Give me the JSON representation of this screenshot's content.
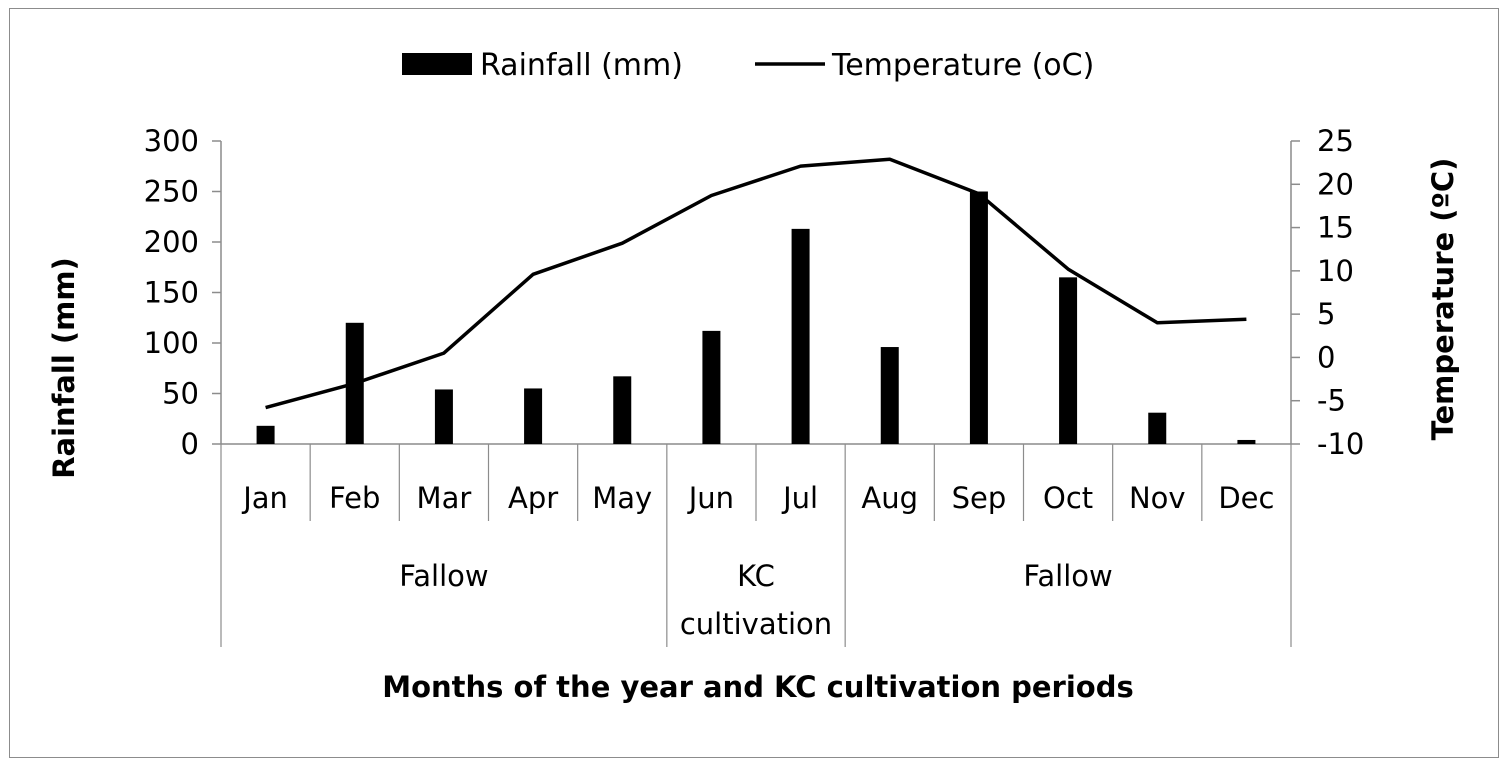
{
  "chart_data": {
    "type": "bar+line",
    "categories": [
      "Jan",
      "Feb",
      "Mar",
      "Apr",
      "May",
      "Jun",
      "Jul",
      "Aug",
      "Sep",
      "Oct",
      "Nov",
      "Dec"
    ],
    "groups": [
      {
        "label": "Fallow",
        "start": 0,
        "end": 4
      },
      {
        "label": "KC cultivation",
        "label_lines": [
          "KC",
          "cultivation"
        ],
        "start": 5,
        "end": 6
      },
      {
        "label": "Fallow",
        "start": 7,
        "end": 11
      }
    ],
    "series": [
      {
        "name": "Rainfall (mm)",
        "type": "bar",
        "axis": "left",
        "values": [
          18,
          120,
          54,
          55,
          67,
          112,
          213,
          96,
          250,
          165,
          31,
          4
        ]
      },
      {
        "name": "Temperature (oC)",
        "type": "line",
        "axis": "right",
        "values": [
          -5.8,
          -3.0,
          0.5,
          9.6,
          13.2,
          18.7,
          22.1,
          22.9,
          18.9,
          10.2,
          4.0,
          4.4
        ]
      }
    ],
    "left_axis": {
      "label": "Rainfall (mm)",
      "min": 0,
      "max": 300,
      "step": 50,
      "ticks": [
        "0",
        "50",
        "100",
        "150",
        "200",
        "250",
        "300"
      ]
    },
    "right_axis": {
      "label": "Temperature (ºC)",
      "min": -10,
      "max": 25,
      "step": 5,
      "ticks": [
        "-10",
        "-5",
        "0",
        "5",
        "10",
        "15",
        "20",
        "25"
      ]
    },
    "xlabel": "Months of the year and KC cultivation periods",
    "legend_position": "top-center",
    "grid": false,
    "colors": {
      "bar": "#000000",
      "line": "#000000",
      "axis": "#8c8c8c"
    }
  }
}
